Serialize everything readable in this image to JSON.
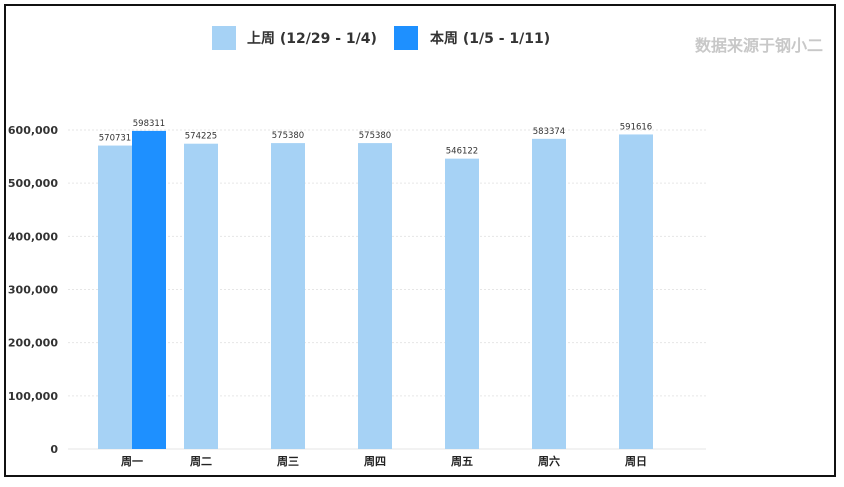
{
  "source_note": "数据来源于钢小二",
  "colors": {
    "last_week": "#a6d2f5",
    "this_week": "#1e90ff",
    "grid": "#e6e6e6"
  },
  "chart_data": {
    "type": "bar",
    "categories": [
      "周一",
      "周二",
      "周三",
      "周四",
      "周五",
      "周六",
      "周日"
    ],
    "series": [
      {
        "name": "上周 (12/29 - 1/4)",
        "values": [
          570731,
          574225,
          575380,
          575380,
          546122,
          583374,
          591616
        ]
      },
      {
        "name": "本周 (1/5 - 1/11)",
        "values": [
          598311,
          null,
          null,
          null,
          null,
          null,
          null
        ]
      }
    ],
    "y_ticks": [
      "0",
      "100,000",
      "200,000",
      "300,000",
      "400,000",
      "500,000",
      "600,000"
    ],
    "ylim": [
      0,
      600000
    ],
    "data_labels": [
      [
        "570731",
        "574225",
        "575380",
        "575380",
        "546122",
        "583374",
        "591616"
      ],
      [
        "598311",
        "",
        "",
        "",
        "",
        "",
        ""
      ]
    ],
    "legend_position": "top-center",
    "grid": true
  }
}
